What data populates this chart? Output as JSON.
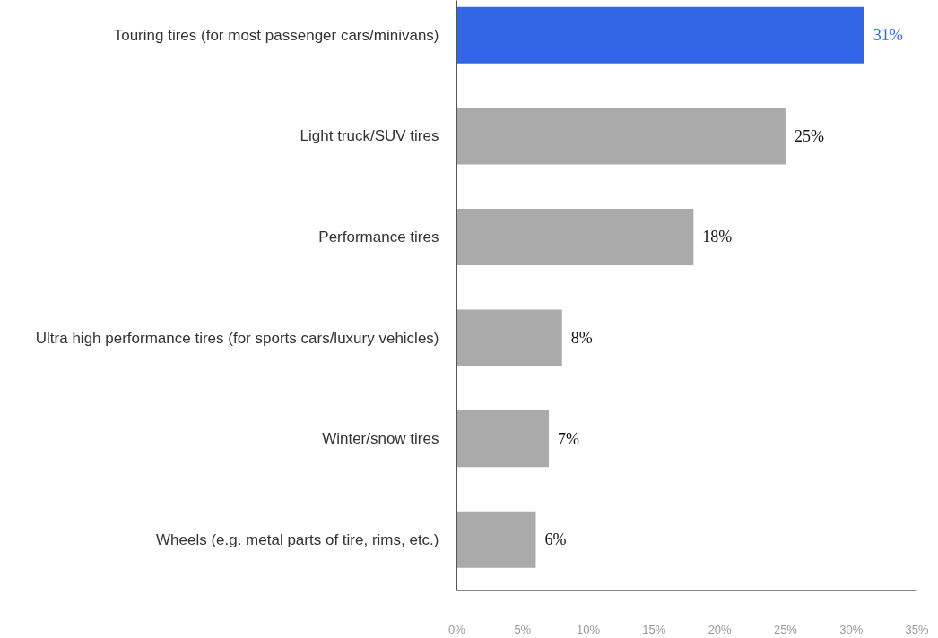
{
  "chart_data": {
    "type": "bar",
    "orientation": "horizontal",
    "categories": [
      "Touring tires (for most passenger cars/minivans)",
      "Light truck/SUV tires",
      "Performance tires",
      "Ultra high performance tires (for sports cars/luxury vehicles)",
      "Winter/snow tires",
      "Wheels (e.g. metal parts of tire, rims, etc.)"
    ],
    "values": [
      31,
      25,
      18,
      8,
      7,
      6
    ],
    "colors": [
      "#3366e6",
      "#aaaaaa",
      "#aaaaaa",
      "#aaaaaa",
      "#aaaaaa",
      "#aaaaaa"
    ],
    "value_labels": [
      "31%",
      "25%",
      "18%",
      "8%",
      "7%",
      "6%"
    ],
    "xlim": [
      0,
      35
    ],
    "xticks": [
      {
        "value": 0,
        "label": "0%"
      },
      {
        "value": 5,
        "label": "5%"
      },
      {
        "value": 10,
        "label": "10%"
      },
      {
        "value": 15,
        "label": "15%"
      },
      {
        "value": 20,
        "label": "20%"
      },
      {
        "value": 25,
        "label": "25%"
      },
      {
        "value": 30,
        "label": "30%"
      },
      {
        "value": 35,
        "label": "35%"
      }
    ],
    "grid": false
  }
}
